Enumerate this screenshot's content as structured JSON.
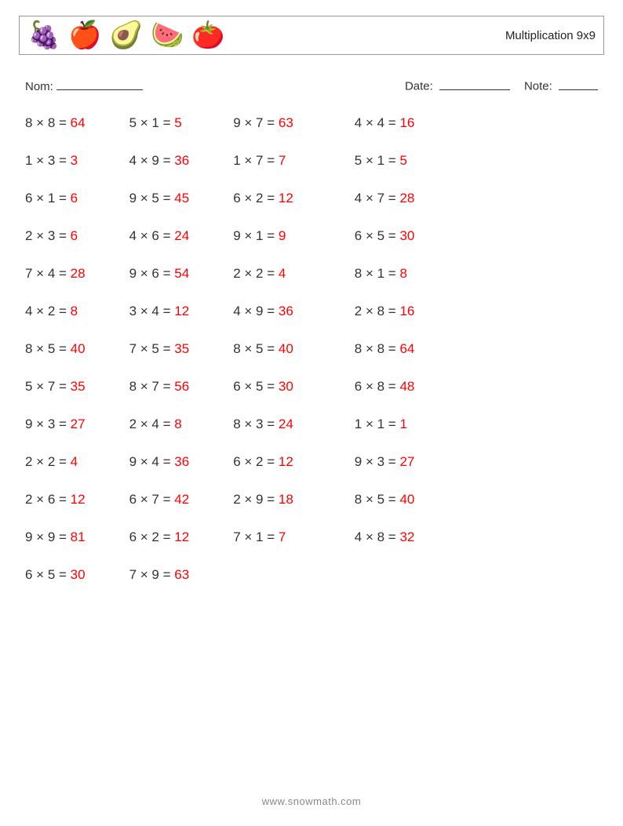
{
  "header": {
    "fruits": [
      "🍇",
      "🍎",
      "🥑",
      "🍉",
      "🍅"
    ],
    "title": "Multiplication 9x9"
  },
  "info": {
    "nom_label": "Nom:",
    "date_label": "Date:",
    "note_label": "Note:"
  },
  "colors": {
    "text": "#333333",
    "answer": "#ff0000",
    "border": "#999999",
    "footer": "#888888",
    "background": "#ffffff"
  },
  "typography": {
    "problem_fontsize": 17,
    "title_fontsize": 15,
    "info_fontsize": 15,
    "footer_fontsize": 13,
    "fruit_fontsize": 34
  },
  "layout": {
    "columns": 4,
    "row_gap": 28,
    "col_gap": 56
  },
  "columns": [
    [
      {
        "a": 8,
        "b": 8,
        "ans": 64
      },
      {
        "a": 1,
        "b": 3,
        "ans": 3
      },
      {
        "a": 6,
        "b": 1,
        "ans": 6
      },
      {
        "a": 2,
        "b": 3,
        "ans": 6
      },
      {
        "a": 7,
        "b": 4,
        "ans": 28
      },
      {
        "a": 4,
        "b": 2,
        "ans": 8
      },
      {
        "a": 8,
        "b": 5,
        "ans": 40
      },
      {
        "a": 5,
        "b": 7,
        "ans": 35
      },
      {
        "a": 9,
        "b": 3,
        "ans": 27
      },
      {
        "a": 2,
        "b": 2,
        "ans": 4
      },
      {
        "a": 2,
        "b": 6,
        "ans": 12
      },
      {
        "a": 9,
        "b": 9,
        "ans": 81
      },
      {
        "a": 6,
        "b": 5,
        "ans": 30
      }
    ],
    [
      {
        "a": 5,
        "b": 1,
        "ans": 5
      },
      {
        "a": 4,
        "b": 9,
        "ans": 36
      },
      {
        "a": 9,
        "b": 5,
        "ans": 45
      },
      {
        "a": 4,
        "b": 6,
        "ans": 24
      },
      {
        "a": 9,
        "b": 6,
        "ans": 54
      },
      {
        "a": 3,
        "b": 4,
        "ans": 12
      },
      {
        "a": 7,
        "b": 5,
        "ans": 35
      },
      {
        "a": 8,
        "b": 7,
        "ans": 56
      },
      {
        "a": 2,
        "b": 4,
        "ans": 8
      },
      {
        "a": 9,
        "b": 4,
        "ans": 36
      },
      {
        "a": 6,
        "b": 7,
        "ans": 42
      },
      {
        "a": 6,
        "b": 2,
        "ans": 12
      },
      {
        "a": 7,
        "b": 9,
        "ans": 63
      }
    ],
    [
      {
        "a": 9,
        "b": 7,
        "ans": 63
      },
      {
        "a": 1,
        "b": 7,
        "ans": 7
      },
      {
        "a": 6,
        "b": 2,
        "ans": 12
      },
      {
        "a": 9,
        "b": 1,
        "ans": 9
      },
      {
        "a": 2,
        "b": 2,
        "ans": 4
      },
      {
        "a": 4,
        "b": 9,
        "ans": 36
      },
      {
        "a": 8,
        "b": 5,
        "ans": 40
      },
      {
        "a": 6,
        "b": 5,
        "ans": 30
      },
      {
        "a": 8,
        "b": 3,
        "ans": 24
      },
      {
        "a": 6,
        "b": 2,
        "ans": 12
      },
      {
        "a": 2,
        "b": 9,
        "ans": 18
      },
      {
        "a": 7,
        "b": 1,
        "ans": 7
      }
    ],
    [
      {
        "a": 4,
        "b": 4,
        "ans": 16
      },
      {
        "a": 5,
        "b": 1,
        "ans": 5
      },
      {
        "a": 4,
        "b": 7,
        "ans": 28
      },
      {
        "a": 6,
        "b": 5,
        "ans": 30
      },
      {
        "a": 8,
        "b": 1,
        "ans": 8
      },
      {
        "a": 2,
        "b": 8,
        "ans": 16
      },
      {
        "a": 8,
        "b": 8,
        "ans": 64
      },
      {
        "a": 6,
        "b": 8,
        "ans": 48
      },
      {
        "a": 1,
        "b": 1,
        "ans": 1
      },
      {
        "a": 9,
        "b": 3,
        "ans": 27
      },
      {
        "a": 8,
        "b": 5,
        "ans": 40
      },
      {
        "a": 4,
        "b": 8,
        "ans": 32
      }
    ]
  ],
  "footer": "www.snowmath.com"
}
